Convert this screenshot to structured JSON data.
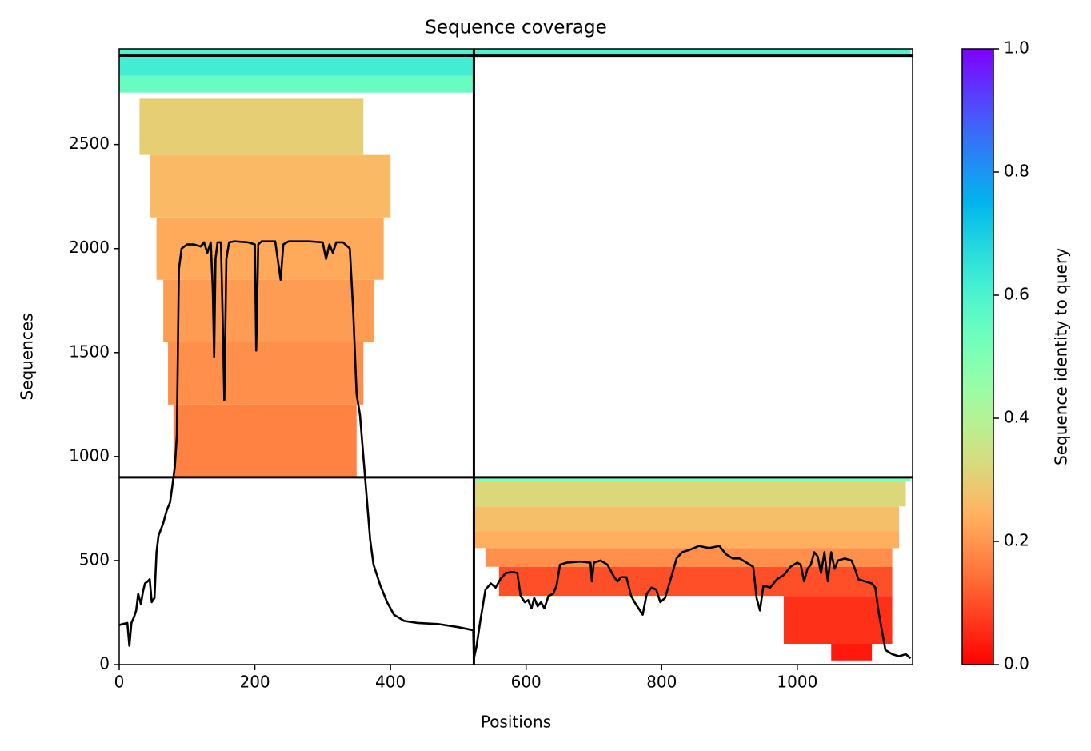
{
  "chart_data": {
    "type": "coverage",
    "title": "Sequence coverage",
    "x_label": "Positions",
    "y_label": "Sequences",
    "xlim": [
      0,
      1170
    ],
    "ylim": [
      0,
      2960
    ],
    "xticks": [
      0,
      200,
      400,
      600,
      800,
      1000
    ],
    "yticks": [
      0,
      500,
      1000,
      1500,
      2000,
      2500
    ],
    "colormap": "rainbow_r",
    "line_color": "#000000",
    "boundaries": {
      "x": [
        523
      ],
      "y": [
        900,
        2927
      ]
    },
    "colorbar": {
      "label": "Sequence identity to query",
      "lim": [
        0,
        1
      ],
      "ticks": [
        {
          "value": 0,
          "label": "0.0"
        },
        {
          "value": 0.2,
          "label": "0.2"
        },
        {
          "value": 0.4,
          "label": "0.4"
        },
        {
          "value": 0.6,
          "label": "0.6"
        },
        {
          "value": 0.8,
          "label": "0.8"
        },
        {
          "value": 1,
          "label": "1.0"
        }
      ]
    },
    "bands": [
      {
        "x": [
          0,
          1167
        ],
        "y": [
          2930,
          2961
        ],
        "identity": 0.6
      },
      {
        "x": [
          0,
          522
        ],
        "y": [
          2830,
          2920
        ],
        "identity": 0.62
      },
      {
        "x": [
          0,
          522
        ],
        "y": [
          2750,
          2830
        ],
        "identity": 0.55
      },
      {
        "x": [
          30,
          360
        ],
        "y": [
          2450,
          2720
        ],
        "identity": 0.3
      },
      {
        "x": [
          45,
          400
        ],
        "y": [
          2150,
          2450
        ],
        "identity": 0.26
      },
      {
        "x": [
          55,
          390
        ],
        "y": [
          1850,
          2150
        ],
        "identity": 0.23
      },
      {
        "x": [
          65,
          375
        ],
        "y": [
          1550,
          1850
        ],
        "identity": 0.21
      },
      {
        "x": [
          72,
          360
        ],
        "y": [
          1250,
          1550
        ],
        "identity": 0.19
      },
      {
        "x": [
          80,
          350
        ],
        "y": [
          900,
          1250
        ],
        "identity": 0.17
      },
      {
        "x": [
          523,
          1167
        ],
        "y": [
          880,
          900
        ],
        "identity": 0.5
      },
      {
        "x": [
          523,
          1160
        ],
        "y": [
          760,
          880
        ],
        "identity": 0.32
      },
      {
        "x": [
          523,
          1150
        ],
        "y": [
          640,
          760
        ],
        "identity": 0.27
      },
      {
        "x": [
          523,
          1150
        ],
        "y": [
          560,
          640
        ],
        "identity": 0.24
      },
      {
        "x": [
          540,
          1140
        ],
        "y": [
          470,
          560
        ],
        "identity": 0.19
      },
      {
        "x": [
          560,
          1140
        ],
        "y": [
          330,
          470
        ],
        "identity": 0.1
      },
      {
        "x": [
          980,
          1140
        ],
        "y": [
          100,
          330
        ],
        "identity": 0.06
      },
      {
        "x": [
          1050,
          1110
        ],
        "y": [
          20,
          100
        ],
        "identity": 0.03
      }
    ],
    "series": [
      {
        "name": "coverage",
        "x": [
          0,
          5,
          12,
          15,
          18,
          22,
          25,
          28,
          32,
          35,
          38,
          42,
          45,
          48,
          52,
          55,
          58,
          65,
          70,
          75,
          78,
          82,
          85,
          88,
          92,
          100,
          110,
          120,
          125,
          130,
          135,
          138,
          140,
          142,
          145,
          150,
          153,
          155,
          158,
          162,
          170,
          190,
          200,
          202,
          205,
          210,
          230,
          238,
          242,
          250,
          280,
          300,
          305,
          310,
          315,
          320,
          330,
          340,
          345,
          350,
          355,
          360,
          365,
          370,
          375,
          385,
          395,
          405,
          420,
          440,
          470,
          500,
          522,
          523,
          527,
          532,
          540,
          548,
          555,
          562,
          570,
          580,
          587,
          592,
          598,
          603,
          608,
          612,
          617,
          622,
          627,
          633,
          640,
          645,
          650,
          660,
          680,
          695,
          697,
          700,
          710,
          720,
          730,
          735,
          740,
          748,
          755,
          760,
          768,
          772,
          778,
          785,
          792,
          798,
          805,
          815,
          822,
          830,
          840,
          855,
          870,
          885,
          895,
          905,
          915,
          925,
          935,
          940,
          945,
          950,
          960,
          970,
          980,
          990,
          1000,
          1005,
          1010,
          1015,
          1020,
          1025,
          1030,
          1035,
          1040,
          1045,
          1050,
          1055,
          1060,
          1070,
          1080,
          1085,
          1090,
          1100,
          1110,
          1115,
          1120,
          1125,
          1130,
          1140,
          1150,
          1160,
          1167
        ],
        "values": [
          190,
          195,
          200,
          90,
          200,
          230,
          260,
          340,
          290,
          350,
          390,
          400,
          410,
          300,
          320,
          540,
          620,
          680,
          740,
          780,
          850,
          950,
          1100,
          1900,
          2000,
          2020,
          2020,
          2010,
          2030,
          1980,
          2030,
          1800,
          1480,
          1950,
          2030,
          2030,
          1600,
          1270,
          1950,
          2030,
          2035,
          2030,
          2020,
          1510,
          2020,
          2035,
          2035,
          1850,
          2020,
          2035,
          2035,
          2030,
          1950,
          2020,
          1980,
          2030,
          2030,
          2000,
          1700,
          1300,
          1200,
          1000,
          800,
          600,
          480,
          380,
          300,
          240,
          210,
          200,
          195,
          180,
          165,
          30,
          90,
          200,
          360,
          390,
          370,
          410,
          440,
          445,
          440,
          330,
          300,
          310,
          270,
          320,
          280,
          300,
          270,
          330,
          340,
          380,
          480,
          490,
          495,
          490,
          400,
          490,
          500,
          480,
          420,
          400,
          420,
          420,
          330,
          300,
          260,
          240,
          340,
          370,
          360,
          300,
          320,
          430,
          510,
          540,
          550,
          570,
          560,
          570,
          530,
          510,
          510,
          490,
          470,
          320,
          260,
          380,
          370,
          410,
          430,
          470,
          490,
          480,
          400,
          460,
          480,
          540,
          520,
          440,
          540,
          400,
          540,
          460,
          500,
          510,
          500,
          460,
          410,
          400,
          390,
          370,
          250,
          160,
          70,
          50,
          40,
          50,
          30
        ]
      }
    ]
  }
}
